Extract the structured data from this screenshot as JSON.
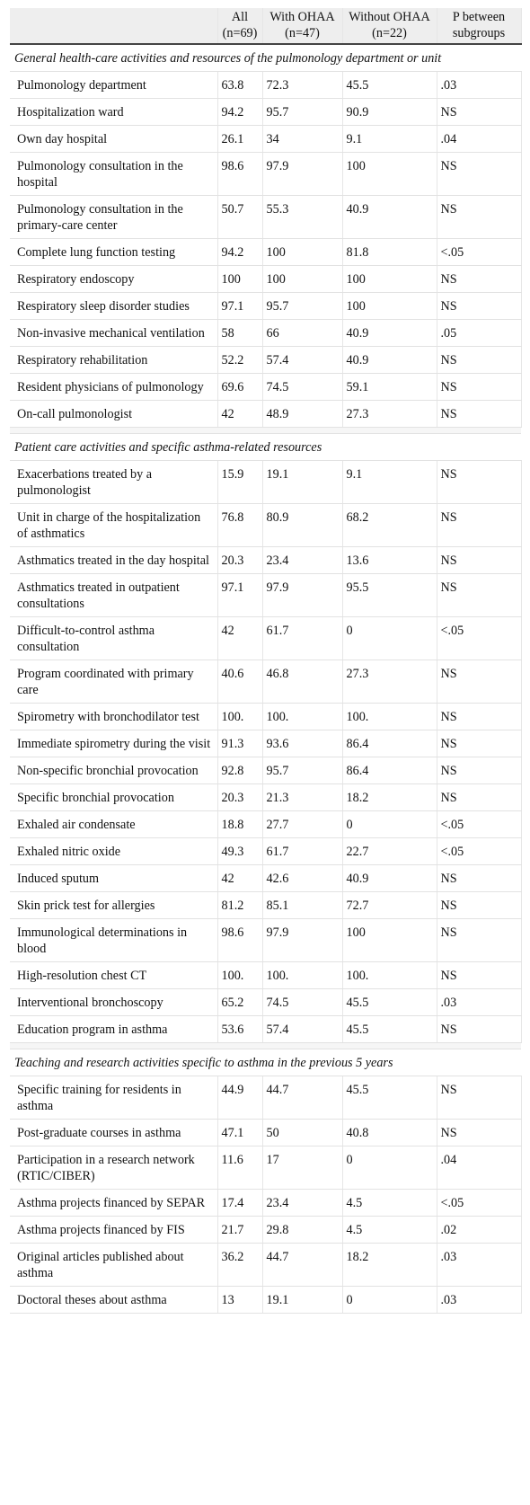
{
  "table": {
    "header": [
      "",
      "All (n=69)",
      "With OHAA (n=47)",
      "Without OHAA (n=22)",
      "P between subgroups"
    ],
    "sections": [
      {
        "title": "General health-care activities and resources of the pulmonology department or unit",
        "rows": [
          [
            "Pulmonology department",
            "63.8",
            "72.3",
            "45.5",
            ".03"
          ],
          [
            "Hospitalization ward",
            "94.2",
            "95.7",
            "90.9",
            "NS"
          ],
          [
            "Own day hospital",
            "26.1",
            "34",
            "9.1",
            ".04"
          ],
          [
            "Pulmonology consultation in the hospital",
            "98.6",
            "97.9",
            "100",
            "NS"
          ],
          [
            "Pulmonology consultation in the primary-care center",
            "50.7",
            "55.3",
            "40.9",
            "NS"
          ],
          [
            "Complete lung function testing",
            "94.2",
            "100",
            "81.8",
            "<.05"
          ],
          [
            "Respiratory endoscopy",
            "100",
            "100",
            "100",
            "NS"
          ],
          [
            "Respiratory sleep disorder studies",
            "97.1",
            "95.7",
            "100",
            "NS"
          ],
          [
            "Non-invasive mechanical ventilation",
            "58",
            "66",
            "40.9",
            ".05"
          ],
          [
            "Respiratory rehabilitation",
            "52.2",
            "57.4",
            "40.9",
            "NS"
          ],
          [
            "Resident physicians of pulmonology",
            "69.6",
            "74.5",
            "59.1",
            "NS"
          ],
          [
            "On-call pulmonologist",
            "42",
            "48.9",
            "27.3",
            "NS"
          ]
        ]
      },
      {
        "title": "Patient care activities and specific asthma-related resources",
        "rows": [
          [
            "Exacerbations treated by a pulmonologist",
            "15.9",
            "19.1",
            "9.1",
            "NS"
          ],
          [
            "Unit in charge of the hospitalization of asthmatics",
            "76.8",
            "80.9",
            "68.2",
            "NS"
          ],
          [
            "Asthmatics treated in the day hospital",
            "20.3",
            "23.4",
            "13.6",
            "NS"
          ],
          [
            "Asthmatics treated in outpatient consultations",
            "97.1",
            "97.9",
            "95.5",
            "NS"
          ],
          [
            "Difficult-to-control asthma consultation",
            "42",
            "61.7",
            "0",
            "<.05"
          ],
          [
            "Program coordinated with primary care",
            "40.6",
            "46.8",
            "27.3",
            "NS"
          ],
          [
            "Spirometry with bronchodilator test",
            "100.",
            "100.",
            "100.",
            "NS"
          ],
          [
            "Immediate spirometry during the visit",
            "91.3",
            "93.6",
            "86.4",
            "NS"
          ],
          [
            "Non-specific bronchial provocation",
            "92.8",
            "95.7",
            "86.4",
            "NS"
          ],
          [
            "Specific bronchial provocation",
            "20.3",
            "21.3",
            "18.2",
            "NS"
          ],
          [
            "Exhaled air condensate",
            "18.8",
            "27.7",
            "0",
            "<.05"
          ],
          [
            "Exhaled nitric oxide",
            "49.3",
            "61.7",
            "22.7",
            "<.05"
          ],
          [
            "Induced sputum",
            "42",
            "42.6",
            "40.9",
            "NS"
          ],
          [
            "Skin prick test for allergies",
            "81.2",
            "85.1",
            "72.7",
            "NS"
          ],
          [
            "Immunological determinations in blood",
            "98.6",
            "97.9",
            "100",
            "NS"
          ],
          [
            "High-resolution chest CT",
            "100.",
            "100.",
            "100.",
            "NS"
          ],
          [
            "Interventional bronchoscopy",
            "65.2",
            "74.5",
            "45.5",
            ".03"
          ],
          [
            "Education program in asthma",
            "53.6",
            "57.4",
            "45.5",
            "NS"
          ]
        ]
      },
      {
        "title": "Teaching and research activities specific to asthma in the previous 5 years",
        "rows": [
          [
            "Specific training for residents in asthma",
            "44.9",
            "44.7",
            "45.5",
            "NS"
          ],
          [
            "Post-graduate courses in asthma",
            "47.1",
            "50",
            "40.8",
            "NS"
          ],
          [
            "Participation in a research network (RTIC/CIBER)",
            "11.6",
            "17",
            "0",
            ".04"
          ],
          [
            "Asthma projects financed by SEPAR",
            "17.4",
            "23.4",
            "4.5",
            "<.05"
          ],
          [
            "Asthma projects financed by FIS",
            "21.7",
            "29.8",
            "4.5",
            ".02"
          ],
          [
            "Original articles published about asthma",
            "36.2",
            "44.7",
            "18.2",
            ".03"
          ],
          [
            "Doctoral theses about asthma",
            "13",
            "19.1",
            "0",
            ".03"
          ]
        ]
      }
    ]
  }
}
